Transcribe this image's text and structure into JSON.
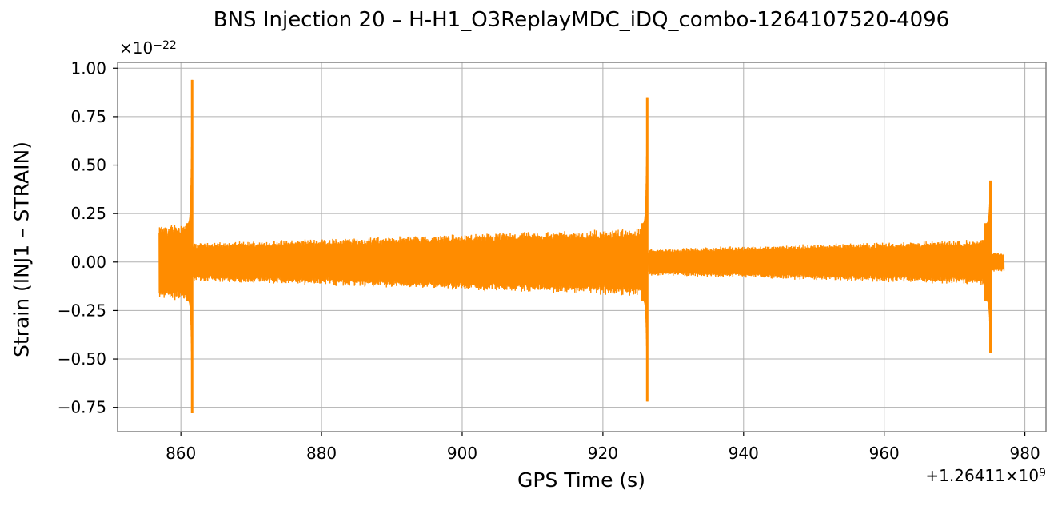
{
  "chart_data": {
    "type": "line",
    "title": "BNS Injection 20 – H-H1_O3ReplayMDC_iDQ_combo-1264107520-4096",
    "xlabel": "GPS Time (s)",
    "ylabel": "Strain (INJ1 – STRAIN)",
    "y_scale_factor": {
      "base": "×10",
      "exponent": "−22"
    },
    "x_offset": {
      "base": "+1.26411×10",
      "exponent": "9"
    },
    "xlim": [
      851,
      983
    ],
    "ylim": [
      -0.875,
      1.03
    ],
    "x_ticks": [
      860,
      880,
      900,
      920,
      940,
      960,
      980
    ],
    "x_tick_labels": [
      "860",
      "880",
      "900",
      "920",
      "940",
      "960",
      "980"
    ],
    "y_ticks": [
      -0.75,
      -0.5,
      -0.25,
      0.0,
      0.25,
      0.5,
      0.75,
      1.0
    ],
    "y_tick_labels": [
      "−0.75",
      "−0.50",
      "−0.25",
      "0.00",
      "0.25",
      "0.50",
      "0.75",
      "1.00"
    ],
    "grid": true,
    "series": [
      {
        "color": "#ff8c00",
        "segments": [
          {
            "x_start": 856.9,
            "x_end": 861.4,
            "envelope_start": 0.19,
            "envelope_end": 0.22
          },
          {
            "x_start": 861.8,
            "x_end": 926.1,
            "envelope_start": 0.1,
            "envelope_end": 0.18
          },
          {
            "x_start": 926.5,
            "x_end": 975.0,
            "envelope_start": 0.07,
            "envelope_end": 0.12
          },
          {
            "x_start": 975.3,
            "x_end": 977.0,
            "envelope_start": 0.05,
            "envelope_end": 0.05
          }
        ],
        "peaks": [
          {
            "x": 861.6,
            "max": 0.94,
            "min": -0.78
          },
          {
            "x": 926.3,
            "max": 0.85,
            "min": -0.72
          },
          {
            "x": 975.1,
            "max": 0.42,
            "min": -0.47
          }
        ]
      }
    ]
  }
}
